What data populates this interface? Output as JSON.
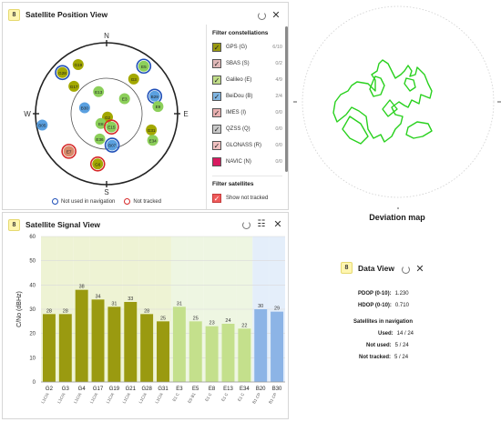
{
  "position_view": {
    "badge": "8",
    "title": "Satellite Position View",
    "compass": {
      "n": "N",
      "s": "S",
      "e": "E",
      "w": "W"
    },
    "satellites": [
      {
        "id": "G28",
        "az": -47,
        "r": 0.85,
        "color": "#a3a800",
        "ring": "#1f4fb8"
      },
      {
        "id": "G19",
        "az": -30,
        "r": 0.8,
        "color": "#a3a800",
        "ring": null
      },
      {
        "id": "G17",
        "az": -50,
        "r": 0.6,
        "color": "#a3a800",
        "ring": null
      },
      {
        "id": "E5",
        "az": 38,
        "r": 0.85,
        "color": "#8ccf5a",
        "ring": "#1f4fb8"
      },
      {
        "id": "G3",
        "az": 38,
        "r": 0.62,
        "color": "#a3a800",
        "ring": null
      },
      {
        "id": "B29",
        "az": 70,
        "r": 0.72,
        "color": "#5aa0e0",
        "ring": "#1f4fb8"
      },
      {
        "id": "E13",
        "az": -20,
        "r": 0.33,
        "color": "#8ccf5a",
        "ring": null
      },
      {
        "id": "E3",
        "az": 50,
        "r": 0.33,
        "color": "#8ccf5a",
        "ring": null
      },
      {
        "id": "E9",
        "az": 82,
        "r": 0.73,
        "color": "#8ccf5a",
        "ring": null
      },
      {
        "id": "B30",
        "az": -75,
        "r": 0.32,
        "color": "#5aa0e0",
        "ring": null
      },
      {
        "id": "G2",
        "az": 165,
        "r": 0.05,
        "color": "#a3a800",
        "ring": null
      },
      {
        "id": "E8",
        "az": -150,
        "r": 0.16,
        "color": "#8ccf5a",
        "ring": null
      },
      {
        "id": "E15",
        "az": 160,
        "r": 0.2,
        "color": "#8ccf5a",
        "ring": "#d62828"
      },
      {
        "id": "G31",
        "az": 110,
        "r": 0.67,
        "color": "#a3a800",
        "ring": null
      },
      {
        "id": "B05",
        "az": -100,
        "r": 0.92,
        "color": "#5aa0e0",
        "ring": null
      },
      {
        "id": "E36",
        "az": -165,
        "r": 0.37,
        "color": "#8ccf5a",
        "ring": null
      },
      {
        "id": "B07",
        "az": 170,
        "r": 0.45,
        "color": "#5aa0e0",
        "ring": "#1f4fb8"
      },
      {
        "id": "E34",
        "az": 120,
        "r": 0.75,
        "color": "#8ccf5a",
        "ring": null
      },
      {
        "id": "E7",
        "az": -135,
        "r": 0.75,
        "color": "#d88a6a",
        "ring": "#d62828"
      },
      {
        "id": "G6",
        "az": -170,
        "r": 0.72,
        "color": "#a3a800",
        "ring": "#d62828"
      }
    ],
    "legend": {
      "not_used": "Not used in navigation",
      "not_tracked": "Not tracked"
    },
    "filter_title": "Filter constellations",
    "constellations": [
      {
        "label": "GPS (G)",
        "count": "6/10",
        "checked": true,
        "color": "#9a9a10"
      },
      {
        "label": "SBAS (S)",
        "count": "0/2",
        "checked": true,
        "color": "#e0b8b8"
      },
      {
        "label": "Galileo (E)",
        "count": "4/9",
        "checked": true,
        "color": "#c0dc88"
      },
      {
        "label": "BeiDou (B)",
        "count": "2/4",
        "checked": true,
        "color": "#7fb4e0"
      },
      {
        "label": "IMES (I)",
        "count": "0/0",
        "checked": true,
        "color": "#e8b0b0"
      },
      {
        "label": "QZSS (Q)",
        "count": "0/0",
        "checked": true,
        "color": "#c8c8c8"
      },
      {
        "label": "GLONASS (R)",
        "count": "0/0",
        "checked": true,
        "color": "#f0c0c0"
      },
      {
        "label": "NAVIC (N)",
        "count": "0/0",
        "checked": false,
        "color": "#d81b60"
      }
    ],
    "filter_sat_title": "Filter satellites",
    "show_not_tracked": "Show not tracked"
  },
  "deviation": {
    "title": "Deviation map"
  },
  "signal_view": {
    "badge": "8",
    "title": "Satellite Signal View",
    "ylabel": "C/No (dBHz)"
  },
  "data_view": {
    "badge": "8",
    "title": "Data View",
    "pdop_label": "PDOP (0-10):",
    "pdop": "1.230",
    "hdop_label": "HDOP (0-10):",
    "hdop": "0.710",
    "sats_title": "Satellites in navigation",
    "used_label": "Used:",
    "used": "14 / 24",
    "not_used_label": "Not used:",
    "not_used": "5 / 24",
    "not_tracked_label": "Not tracked:",
    "not_tracked": "5 / 24"
  },
  "chart_data": {
    "type": "bar",
    "ylabel": "C/No (dBHz)",
    "ylim": [
      0,
      60
    ],
    "yticks": [
      0,
      10,
      20,
      30,
      40,
      50,
      60
    ],
    "categories": [
      "G2",
      "G3",
      "G4",
      "G17",
      "G19",
      "G21",
      "G28",
      "G31",
      "E3",
      "E5",
      "E8",
      "E13",
      "E34",
      "B20",
      "B30"
    ],
    "sublabels": [
      "L1C/A",
      "L1C/A",
      "L1C/A",
      "L1C/A",
      "L1C/A",
      "L1C/A",
      "L1C/A",
      "L1C/A",
      "E1 C",
      "E5 B1",
      "E1 C",
      "E1 C",
      "E1 C",
      "B1 CP",
      "B1 CP"
    ],
    "values": [
      28,
      28,
      38,
      34,
      31,
      33,
      28,
      25,
      31,
      25,
      23,
      24,
      22,
      30,
      29
    ],
    "colors": [
      "#9a9a10",
      "#9a9a10",
      "#9a9a10",
      "#9a9a10",
      "#9a9a10",
      "#9a9a10",
      "#9a9a10",
      "#9a9a10",
      "#c4e08c",
      "#c4e08c",
      "#c4e08c",
      "#c4e08c",
      "#c4e08c",
      "#8cb4e6",
      "#8cb4e6"
    ],
    "bgcolors": [
      "#eef3d4",
      "#eef3d4",
      "#eef3d4",
      "#eef3d4",
      "#eef3d4",
      "#eef3d4",
      "#eef3d4",
      "#eef3d4",
      "#eef6e2",
      "#eef6e2",
      "#eef6e2",
      "#eef6e2",
      "#eef6e2",
      "#e4eefa",
      "#e4eefa"
    ],
    "grid": true
  }
}
